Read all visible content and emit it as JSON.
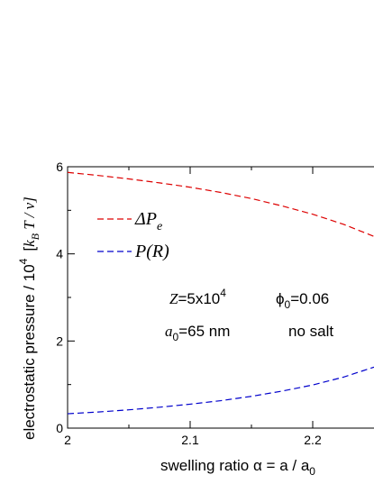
{
  "chart_data": {
    "type": "line",
    "xlabel": "swelling ratio  α = a / a₀",
    "xlabel_main": "swelling ratio  α = a / a",
    "xlabel_sub": "0",
    "ylabel": "electrostatic pressure / 10⁴  [k_B T / v]",
    "ylabel_main": "electrostatic pressure / 10",
    "ylabel_sup": "4",
    "ylabel_units_open": "[",
    "ylabel_units_k": "k",
    "ylabel_units_B": "B",
    "ylabel_units_rest": " T / v]",
    "xlim": [
      2.0,
      2.25
    ],
    "ylim": [
      0,
      6
    ],
    "x_ticks": [
      {
        "value": 2.0,
        "label": "2"
      },
      {
        "value": 2.1,
        "label": "2.1"
      },
      {
        "value": 2.2,
        "label": "2.2"
      }
    ],
    "y_ticks": [
      {
        "value": 0,
        "label": "0"
      },
      {
        "value": 2,
        "label": "2"
      },
      {
        "value": 4,
        "label": "4"
      },
      {
        "value": 6,
        "label": "6"
      }
    ],
    "series": [
      {
        "name": "ΔP_e",
        "name_main": "ΔP",
        "name_sub": "e",
        "color": "#dd0000",
        "dash": "dashed",
        "x": [
          2.0,
          2.025,
          2.05,
          2.075,
          2.1,
          2.125,
          2.15,
          2.175,
          2.2,
          2.225,
          2.25
        ],
        "y": [
          5.87,
          5.8,
          5.72,
          5.63,
          5.53,
          5.41,
          5.27,
          5.1,
          4.91,
          4.68,
          4.4
        ]
      },
      {
        "name": "P(R)",
        "color": "#0000cc",
        "dash": "dashed",
        "x": [
          2.0,
          2.025,
          2.05,
          2.075,
          2.1,
          2.125,
          2.15,
          2.175,
          2.2,
          2.225,
          2.25
        ],
        "y": [
          0.33,
          0.37,
          0.42,
          0.48,
          0.55,
          0.63,
          0.73,
          0.85,
          0.99,
          1.17,
          1.4
        ]
      }
    ],
    "legend_position": "upper-left",
    "annotations": {
      "z_label": "Z",
      "z_value": "=5x10",
      "z_exp": "4",
      "phi_symbol": "ϕ",
      "phi_sub": "0",
      "phi_value": "=0.06",
      "a_symbol": "a",
      "a_sub": "0",
      "a_value": "=65 nm",
      "salt": "no salt"
    },
    "grid": false
  }
}
